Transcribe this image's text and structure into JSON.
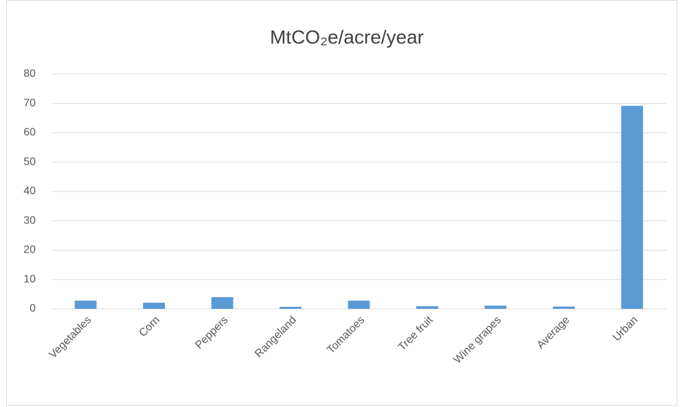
{
  "chart_data": {
    "type": "bar",
    "title": "MtCO₂e/acre/year",
    "categories": [
      "Vegetables",
      "Corn",
      "Peppers",
      "Rangeland",
      "Tomatoes",
      "Tree fruit",
      "Wine grapes",
      "Average",
      "Urban"
    ],
    "values": [
      2.8,
      2.1,
      4.0,
      0.7,
      2.8,
      0.9,
      1.1,
      0.8,
      69.2
    ],
    "color": "#5b9bd5",
    "ylim": [
      0,
      80
    ],
    "yticks": [
      0,
      10,
      20,
      30,
      40,
      50,
      60,
      70,
      80
    ],
    "grid": true
  }
}
